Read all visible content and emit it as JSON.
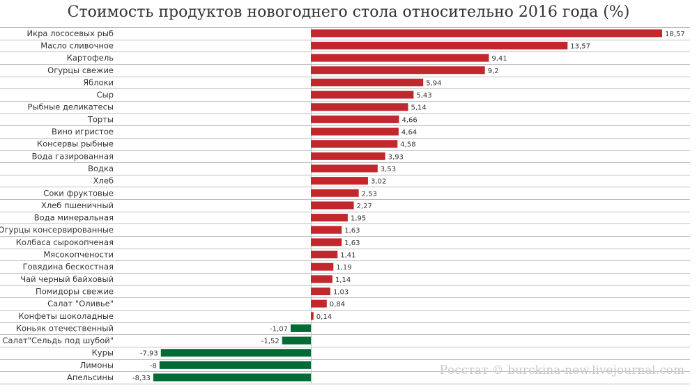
{
  "chart_data": {
    "type": "bar",
    "orientation": "horizontal",
    "title": "Стоимость продуктов новогоднего стола относительно 2016 года (%)",
    "xlabel": "",
    "ylabel": "",
    "xlim": [
      -10,
      18.57
    ],
    "grid": true,
    "legend": "none",
    "categories": [
      "Икра лососевых рыб",
      "Масло сливочное",
      "Картофель",
      "Огурцы свежие",
      "Яблоки",
      "Сыр",
      "Рыбные деликатесы",
      "Торты",
      "Вино игристое",
      "Консервы рыбные",
      "Вода газированная",
      "Водка",
      "Хлеб",
      "Соки фруктовые",
      "Хлеб пшеничный",
      "Вода минеральная",
      "Огурцы консервированные",
      "Колбаса сырокопченая",
      "Мясокопчености",
      "Говядина бескостная",
      "Чай черный байховый",
      "Помидоры свежие",
      "Салат \"Оливье\"",
      "Конфеты шоколадные",
      "Коньяк отечественный",
      "Салат\"Сельдь под шубой\"",
      "Куры",
      "Лимоны",
      "Апельсины"
    ],
    "values": [
      18.57,
      13.57,
      9.41,
      9.2,
      5.94,
      5.43,
      5.14,
      4.66,
      4.64,
      4.58,
      3.93,
      3.53,
      3.02,
      2.53,
      2.27,
      1.95,
      1.63,
      1.63,
      1.41,
      1.19,
      1.14,
      1.03,
      0.84,
      0.14,
      -1.07,
      -1.52,
      -7.93,
      -8,
      -8.33
    ],
    "value_labels": [
      "18,57",
      "13,57",
      "9,41",
      "9,2",
      "5,94",
      "5,43",
      "5,14",
      "4,66",
      "4,64",
      "4,58",
      "3,93",
      "3,53",
      "3,02",
      "2,53",
      "2,27",
      "1,95",
      "1,63",
      "1,63",
      "1,41",
      "1,19",
      "1,14",
      "1,03",
      "0,84",
      "0,14",
      "-1,07",
      "-1,52",
      "-7,93",
      "-8",
      "-8,33"
    ],
    "colors": {
      "positive": "#c1272d",
      "negative": "#006b35",
      "grid": "#bdbdbd",
      "label": "#333333"
    }
  },
  "source": "Росстат © burckina-new.livejournal.com"
}
